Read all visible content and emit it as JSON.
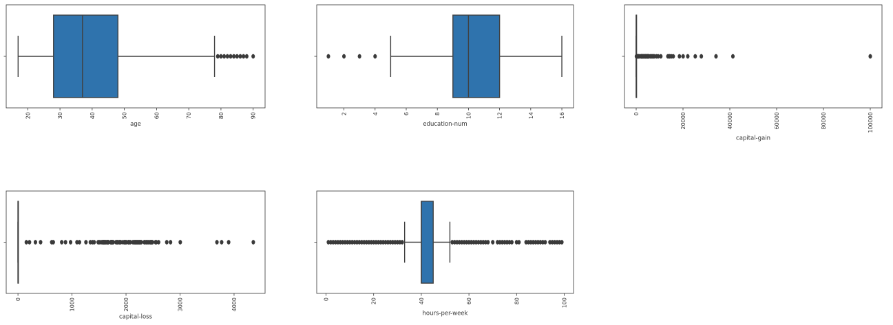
{
  "colors": {
    "box_fill": "#2f73ad",
    "line": "#404040",
    "frame": "#333333",
    "background": "#ffffff"
  },
  "chart_data": [
    {
      "type": "box",
      "xlabel": "age",
      "xlim": [
        13.3,
        93.7
      ],
      "ticks": [
        20,
        30,
        40,
        50,
        60,
        70,
        80,
        90
      ],
      "tick_labels": [
        "20",
        "30",
        "40",
        "50",
        "60",
        "70",
        "80",
        "90"
      ],
      "whisker_low": 17,
      "q1": 28,
      "median": 37,
      "q3": 48,
      "whisker_high": 78,
      "outliers": [
        79,
        80,
        81,
        82,
        83,
        84,
        85,
        86,
        87,
        88,
        90
      ]
    },
    {
      "type": "box",
      "xlabel": "education-num",
      "xlim": [
        0.25,
        16.75
      ],
      "ticks": [
        2,
        4,
        6,
        8,
        10,
        12,
        14,
        16
      ],
      "tick_labels": [
        "2",
        "4",
        "6",
        "8",
        "10",
        "12",
        "14",
        "16"
      ],
      "whisker_low": 5,
      "q1": 9,
      "median": 10,
      "q3": 12,
      "whisker_high": 16,
      "outliers": [
        1,
        2,
        3,
        4
      ]
    },
    {
      "type": "box",
      "xlabel": "capital-gain",
      "xlim": [
        -5000,
        105000
      ],
      "ticks": [
        0,
        20000,
        40000,
        60000,
        80000,
        100000
      ],
      "tick_labels": [
        "0",
        "20000",
        "40000",
        "60000",
        "80000",
        "100000"
      ],
      "whisker_low": 0,
      "q1": 0,
      "median": 0,
      "q3": 0,
      "whisker_high": 0,
      "outliers": [
        114,
        401,
        594,
        914,
        1055,
        1424,
        2050,
        2174,
        2354,
        2597,
        2829,
        3103,
        3325,
        3674,
        3908,
        4064,
        4386,
        4650,
        4787,
        5013,
        5178,
        5455,
        6097,
        6418,
        6849,
        7298,
        7688,
        8614,
        9386,
        10520,
        13550,
        14084,
        14344,
        15024,
        15831,
        18481,
        20051,
        22040,
        25236,
        27828,
        34095,
        41310,
        99999
      ]
    },
    {
      "type": "box",
      "xlabel": "capital-loss",
      "xlim": [
        -218,
        4574
      ],
      "ticks": [
        0,
        1000,
        2000,
        3000,
        4000
      ],
      "tick_labels": [
        "0",
        "1000",
        "2000",
        "3000",
        "4000"
      ],
      "whisker_low": 0,
      "q1": 0,
      "median": 0,
      "q3": 0,
      "whisker_high": 0,
      "outliers": [
        155,
        213,
        323,
        419,
        625,
        653,
        810,
        880,
        974,
        1092,
        1138,
        1258,
        1340,
        1380,
        1411,
        1485,
        1504,
        1539,
        1564,
        1573,
        1579,
        1590,
        1594,
        1602,
        1617,
        1628,
        1648,
        1651,
        1668,
        1669,
        1672,
        1719,
        1721,
        1735,
        1740,
        1741,
        1755,
        1762,
        1816,
        1825,
        1844,
        1848,
        1876,
        1887,
        1902,
        1944,
        1974,
        1977,
        1980,
        2001,
        2002,
        2042,
        2051,
        2057,
        2080,
        2129,
        2149,
        2163,
        2174,
        2179,
        2201,
        2205,
        2206,
        2231,
        2238,
        2246,
        2258,
        2267,
        2282,
        2339,
        2352,
        2377,
        2392,
        2415,
        2444,
        2457,
        2467,
        2472,
        2489,
        2547,
        2559,
        2603,
        2754,
        2824,
        3004,
        3683,
        3770,
        3900,
        4356
      ]
    },
    {
      "type": "box",
      "xlabel": "hours-per-week",
      "xlim": [
        -3.9,
        103.9
      ],
      "ticks": [
        0,
        20,
        40,
        60,
        80,
        100
      ],
      "tick_labels": [
        "0",
        "20",
        "40",
        "60",
        "80",
        "100"
      ],
      "whisker_low": 33,
      "q1": 40,
      "median": 40,
      "q3": 45,
      "whisker_high": 52,
      "outliers": [
        1,
        2,
        3,
        4,
        5,
        6,
        7,
        8,
        9,
        10,
        11,
        12,
        13,
        14,
        15,
        16,
        17,
        18,
        19,
        20,
        21,
        22,
        23,
        24,
        25,
        26,
        27,
        28,
        29,
        30,
        31,
        32,
        53,
        54,
        55,
        56,
        57,
        58,
        59,
        60,
        61,
        62,
        63,
        64,
        65,
        66,
        67,
        68,
        70,
        72,
        73,
        74,
        75,
        76,
        77,
        78,
        80,
        81,
        84,
        85,
        86,
        87,
        88,
        89,
        90,
        91,
        92,
        94,
        95,
        96,
        97,
        98,
        99
      ]
    }
  ]
}
